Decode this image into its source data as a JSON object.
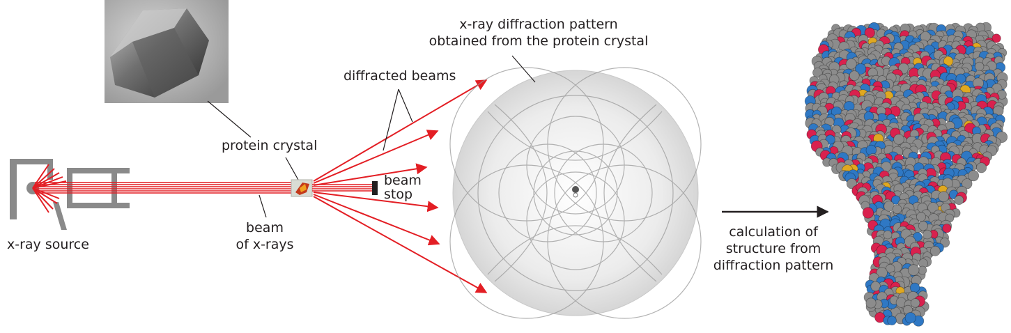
{
  "labels": {
    "pattern_title_line1": "x-ray diffraction pattern",
    "pattern_title_line2": "obtained from the protein crystal",
    "diffracted_beams": "diffracted beams",
    "protein_crystal": "protein crystal",
    "beam_stop_line1": "beam",
    "beam_stop_line2": "stop",
    "beam_line1": "beam",
    "beam_line2": "of x-rays",
    "xray_source": "x-ray source",
    "calc_line1": "calculation of",
    "calc_line2": "structure from",
    "calc_line3": "diffraction pattern"
  },
  "colors": {
    "beam": "#e31e24",
    "apparatus": "#8a8a8a",
    "text": "#231f20",
    "atom_carbon": "#8c8c8c",
    "atom_nitrogen": "#2f78c4",
    "atom_oxygen": "#d9214e",
    "atom_sulfur": "#e0a820"
  }
}
